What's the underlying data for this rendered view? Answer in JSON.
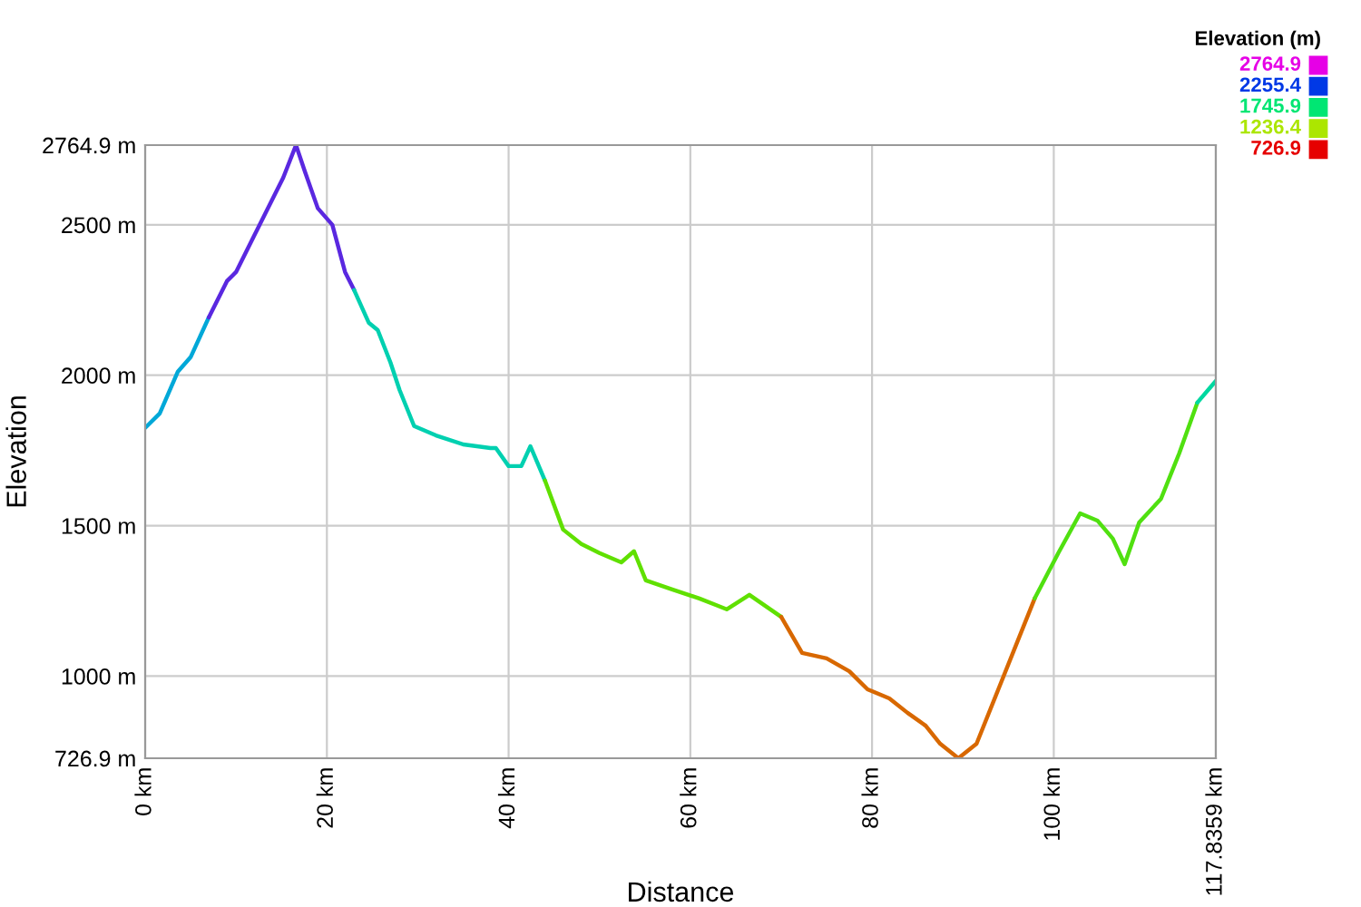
{
  "chart_data": {
    "type": "line",
    "xlabel": "Distance",
    "ylabel": "Elevation",
    "legend_title": "Elevation (m)",
    "xlim": [
      0,
      117.8359
    ],
    "ylim": [
      726.9,
      2764.9
    ],
    "xticks": [
      {
        "value": 0,
        "label": "0 km"
      },
      {
        "value": 20,
        "label": "20 km"
      },
      {
        "value": 40,
        "label": "40 km"
      },
      {
        "value": 60,
        "label": "60 km"
      },
      {
        "value": 80,
        "label": "80 km"
      },
      {
        "value": 100,
        "label": "100 km"
      },
      {
        "value": 117.8359,
        "label": "117.8359 km"
      }
    ],
    "yticks": [
      {
        "value": 726.9,
        "label": "726.9 m"
      },
      {
        "value": 1000,
        "label": "1000 m"
      },
      {
        "value": 1500,
        "label": "1500 m"
      },
      {
        "value": 2000,
        "label": "2000 m"
      },
      {
        "value": 2500,
        "label": "2500 m"
      },
      {
        "value": 2764.9,
        "label": "2764.9 m"
      }
    ],
    "cticks": [
      2764.9,
      2255.4,
      1745.9,
      1236.4,
      726.9
    ],
    "colors": [
      "#e600e6",
      "#0039e6",
      "#00e673",
      "#ace600",
      "#e60000"
    ],
    "grid": true,
    "marker": "none",
    "line_style": "solid",
    "series": [
      {
        "color": "#00a8d8",
        "x": [
          0,
          1.6,
          3.6,
          5.0,
          7.0
        ],
        "values": [
          1825,
          1873,
          2012,
          2060,
          2192
        ]
      },
      {
        "color": "#5a28e0",
        "x": [
          7.0,
          9.0,
          10.0,
          12.0,
          14.0,
          15.2,
          16.6,
          17.6,
          19.0,
          20.6,
          22.0,
          23.0
        ],
        "values": [
          2192,
          2313,
          2343,
          2464,
          2585,
          2657,
          2764.9,
          2675,
          2555,
          2500,
          2343,
          2283
        ]
      },
      {
        "color": "#00d0b0",
        "x": [
          23.0,
          24.6,
          25.6,
          27.0,
          28.0,
          29.6,
          32.0,
          35.0,
          38.0,
          38.6,
          40.0,
          41.4,
          42.4,
          44.0
        ],
        "values": [
          2283,
          2175,
          2150,
          2042,
          1951,
          1831,
          1800,
          1770,
          1758,
          1758,
          1698,
          1698,
          1764,
          1650
        ]
      },
      {
        "color": "#60e000",
        "x": [
          44.0,
          46.0,
          48.0,
          50.0,
          52.4,
          53.8,
          55.1,
          58.0,
          61.0,
          63.0,
          64.0,
          66.5,
          70.0
        ],
        "values": [
          1650,
          1487,
          1439,
          1409,
          1378,
          1415,
          1318,
          1288,
          1258,
          1234,
          1222,
          1270,
          1197
        ]
      },
      {
        "color": "#d86800",
        "x": [
          70.0,
          72.3,
          75.0,
          77.5,
          79.5,
          81.9,
          83.9,
          85.9,
          87.5,
          89.5,
          91.5,
          93.9,
          95.9,
          97.9
        ],
        "values": [
          1197,
          1077,
          1059,
          1016,
          956,
          926,
          878,
          835,
          775,
          726.9,
          775,
          956,
          1107,
          1258
        ]
      },
      {
        "color": "#50e010",
        "x": [
          97.9,
          100.5,
          102.9,
          104.8,
          106.5,
          107.8,
          109.4,
          111.8,
          113.8,
          115.8
        ],
        "values": [
          1258,
          1409,
          1541,
          1517,
          1457,
          1372,
          1511,
          1589,
          1740,
          1909
        ]
      },
      {
        "color": "#00d8a0",
        "x": [
          115.8,
          117.8359
        ],
        "values": [
          1909,
          1981
        ]
      }
    ]
  }
}
